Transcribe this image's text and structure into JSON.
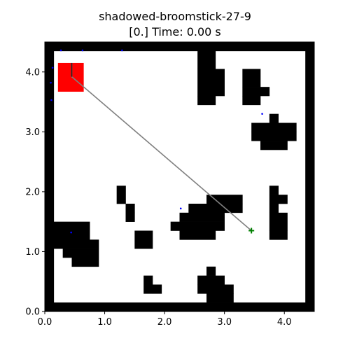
{
  "header": {
    "title": "shadowed-broomstick-27-9",
    "subtitle": "[0.] Time: 0.00 s"
  },
  "chart_data": {
    "type": "scatter",
    "xlim": [
      0.0,
      4.5
    ],
    "ylim": [
      0.0,
      4.5
    ],
    "x_ticks": [
      0.0,
      1.0,
      2.0,
      3.0,
      4.0
    ],
    "y_ticks": [
      0.0,
      1.0,
      2.0,
      3.0,
      4.0
    ],
    "x_tick_labels": [
      "0.0",
      "1.0",
      "2.0",
      "3.0",
      "4.0"
    ],
    "y_tick_labels": [
      "0.0",
      "1.0",
      "2.0",
      "3.0",
      "4.0"
    ],
    "grid": false,
    "cell_size": 0.15,
    "grid_dims": [
      30,
      30
    ],
    "obstacle_color": "#000000",
    "obstacle_rects": [
      [
        0,
        0,
        30,
        1
      ],
      [
        0,
        29,
        30,
        1
      ],
      [
        0,
        0,
        1,
        30
      ],
      [
        29,
        0,
        1,
        30
      ],
      [
        17,
        27,
        2,
        2
      ],
      [
        17,
        24,
        3,
        3
      ],
      [
        17,
        23,
        2,
        1
      ],
      [
        22,
        25,
        2,
        2
      ],
      [
        22,
        24,
        3,
        1
      ],
      [
        22,
        23,
        2,
        1
      ],
      [
        25,
        21,
        1,
        1
      ],
      [
        23,
        20,
        5,
        1
      ],
      [
        23,
        19,
        5,
        1
      ],
      [
        24,
        18,
        3,
        1
      ],
      [
        25,
        13,
        1,
        1
      ],
      [
        25,
        12,
        2,
        1
      ],
      [
        25,
        11,
        1,
        1
      ],
      [
        8,
        12,
        1,
        2
      ],
      [
        9,
        11,
        1,
        1
      ],
      [
        9,
        10,
        1,
        1
      ],
      [
        18,
        12,
        4,
        1
      ],
      [
        16,
        11,
        6,
        1
      ],
      [
        15,
        10,
        5,
        1
      ],
      [
        14,
        9,
        6,
        1
      ],
      [
        15,
        8,
        4,
        1
      ],
      [
        25,
        9,
        2,
        2
      ],
      [
        25,
        8,
        2,
        1
      ],
      [
        1,
        8,
        4,
        2
      ],
      [
        1,
        7,
        5,
        1
      ],
      [
        2,
        6,
        4,
        1
      ],
      [
        3,
        5,
        3,
        1
      ],
      [
        10,
        7,
        2,
        2
      ],
      [
        18,
        4,
        1,
        1
      ],
      [
        17,
        3,
        3,
        1
      ],
      [
        17,
        2,
        4,
        1
      ],
      [
        18,
        1,
        3,
        1
      ],
      [
        11,
        2,
        1,
        2
      ],
      [
        12,
        2,
        1,
        1
      ]
    ],
    "goal_region": {
      "x": [
        0.22,
        0.65
      ],
      "y": [
        3.67,
        4.15
      ],
      "color": "#ff0000"
    },
    "path": {
      "x": [
        3.45,
        0.45,
        0.45
      ],
      "y": [
        1.35,
        3.92,
        4.15
      ],
      "color": "#808080"
    },
    "robot": {
      "x": 3.45,
      "y": 1.35,
      "marker": "+",
      "color": "#008000"
    },
    "lidar_points": {
      "color": "#0000ff",
      "x": [
        0.27,
        0.63,
        1.29,
        0.13,
        0.1,
        0.11,
        0.44,
        2.27,
        3.63
      ],
      "y": [
        4.36,
        4.36,
        4.36,
        4.07,
        3.82,
        3.53,
        1.32,
        1.72,
        3.3
      ]
    }
  }
}
